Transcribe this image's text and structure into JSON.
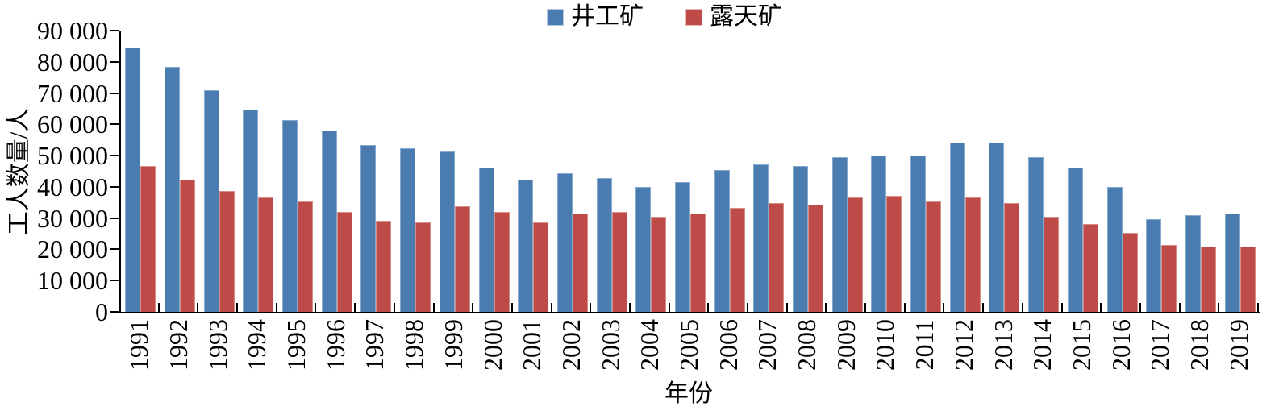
{
  "chart_data": {
    "type": "bar",
    "title": "",
    "xlabel": "年份",
    "ylabel": "工人数量/人",
    "ylim": [
      0,
      90000
    ],
    "ytick_step": 10000,
    "ytick_labels": [
      "0",
      "10 000",
      "20 000",
      "30 000",
      "40 000",
      "50 000",
      "60 000",
      "70 000",
      "80 000",
      "90 000"
    ],
    "grid": false,
    "legend_position": "top-center",
    "categories": [
      1991,
      1992,
      1993,
      1994,
      1995,
      1996,
      1997,
      1998,
      1999,
      2000,
      2001,
      2002,
      2003,
      2004,
      2005,
      2006,
      2007,
      2008,
      2009,
      2010,
      2011,
      2012,
      2013,
      2014,
      2015,
      2016,
      2017,
      2018,
      2019
    ],
    "series": [
      {
        "name": "井工矿",
        "key": "underground-mine",
        "color": "#4a7cb0",
        "values": [
          84500,
          78500,
          71000,
          64800,
          61500,
          58000,
          53300,
          52300,
          51200,
          46100,
          42300,
          44400,
          42800,
          40000,
          41500,
          45500,
          47300,
          46600,
          49600,
          50100,
          50100,
          54200,
          54100,
          49600,
          46100,
          40000,
          29700,
          30900,
          31500
        ]
      },
      {
        "name": "露天矿",
        "key": "open-pit-mine",
        "color": "#be4b48",
        "values": [
          46800,
          42300,
          38800,
          36500,
          35400,
          32000,
          29200,
          28600,
          33700,
          32100,
          28700,
          31500,
          32000,
          30400,
          31400,
          33200,
          34900,
          34200,
          36600,
          37100,
          35400,
          36600,
          34900,
          30400,
          28200,
          25300,
          21400,
          20800,
          20800
        ]
      }
    ]
  }
}
